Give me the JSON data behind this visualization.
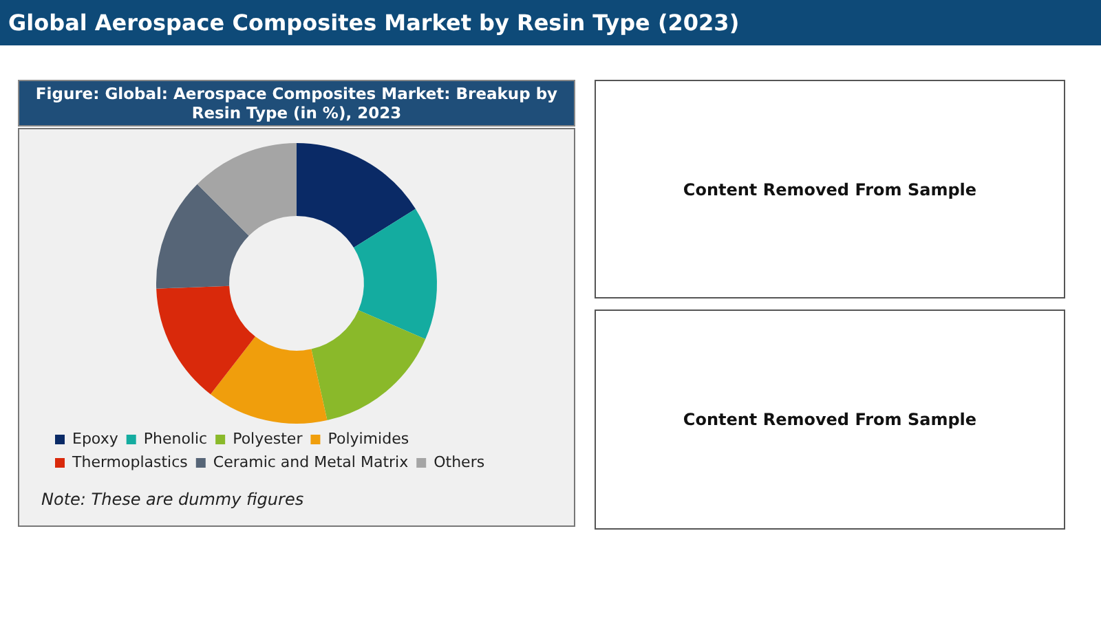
{
  "chart_data": {
    "type": "donut",
    "title": "Global Aerospace Composites Market by Resin Type (2023)",
    "subtitle": "Figure: Global: Aerospace Composites Market: Breakup by Resin Type (in %), 2023",
    "categories": [
      "Epoxy",
      "Phenolic",
      "Polyester",
      "Polyimides",
      "Thermoplastics",
      "Ceramic and Metal Matrix",
      "Others"
    ],
    "values": [
      16.1,
      15.4,
      15.0,
      14.0,
      13.9,
      13.1,
      12.5
    ],
    "colors": [
      "#0a2a66",
      "#14aca0",
      "#8ab92a",
      "#f09e0c",
      "#d9290b",
      "#566577",
      "#a5a5a5"
    ],
    "legend": "bottom",
    "annotations": [
      "Note: These are dummy figures",
      "Content Removed From Sample",
      "Content Removed From Sample"
    ]
  }
}
